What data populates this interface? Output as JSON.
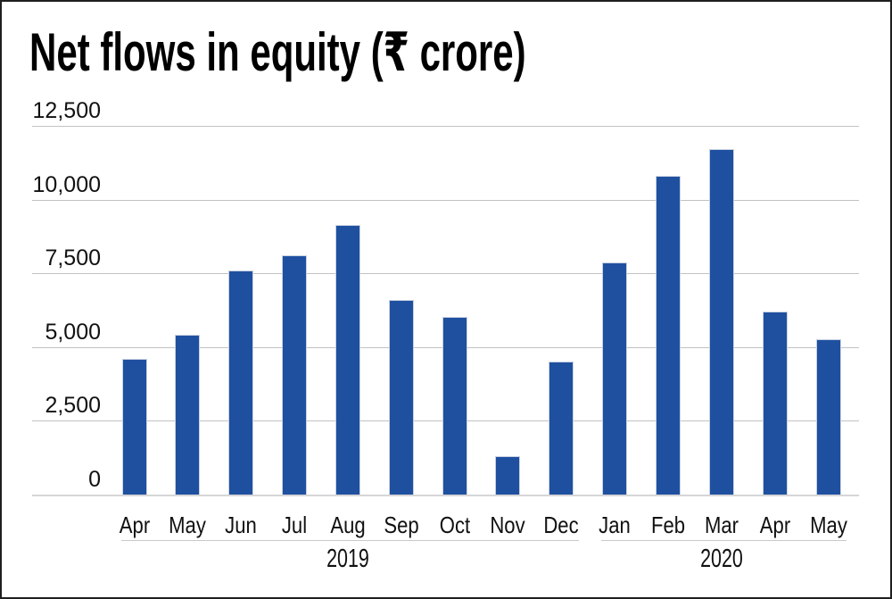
{
  "chart_data": {
    "type": "bar",
    "title": "Net flows in equity (₹ crore)",
    "categories": [
      "Apr",
      "May",
      "Jun",
      "Jul",
      "Aug",
      "Sep",
      "Oct",
      "Nov",
      "Dec",
      "Jan",
      "Feb",
      "Mar",
      "Apr",
      "May"
    ],
    "values": [
      4609,
      5408,
      7585,
      8113,
      9152,
      6609,
      6026,
      1312,
      4499,
      7877,
      10796,
      11723,
      6213,
      5256
    ],
    "groups": [
      {
        "label": "2019",
        "start": 0,
        "end": 8
      },
      {
        "label": "2020",
        "start": 9,
        "end": 13
      }
    ],
    "xlabel": "",
    "ylabel": "",
    "ylim": [
      0,
      12500
    ],
    "yticks": [
      0,
      2500,
      5000,
      7500,
      10000,
      12500
    ],
    "ytick_labels": [
      "0",
      "2,500",
      "5,000",
      "7,500",
      "10,000",
      "12,500"
    ],
    "grid": true,
    "legend": false,
    "colors": {
      "bar": "#1f50a0",
      "bar_edge": "#c9d2e2",
      "gridline": "#c2c2c2",
      "zero_line": "#d6d6d8",
      "group_line": "#c9c9c9",
      "text": "#111111",
      "frame_border": "#1f1f1f",
      "background": "#ffffff"
    }
  }
}
